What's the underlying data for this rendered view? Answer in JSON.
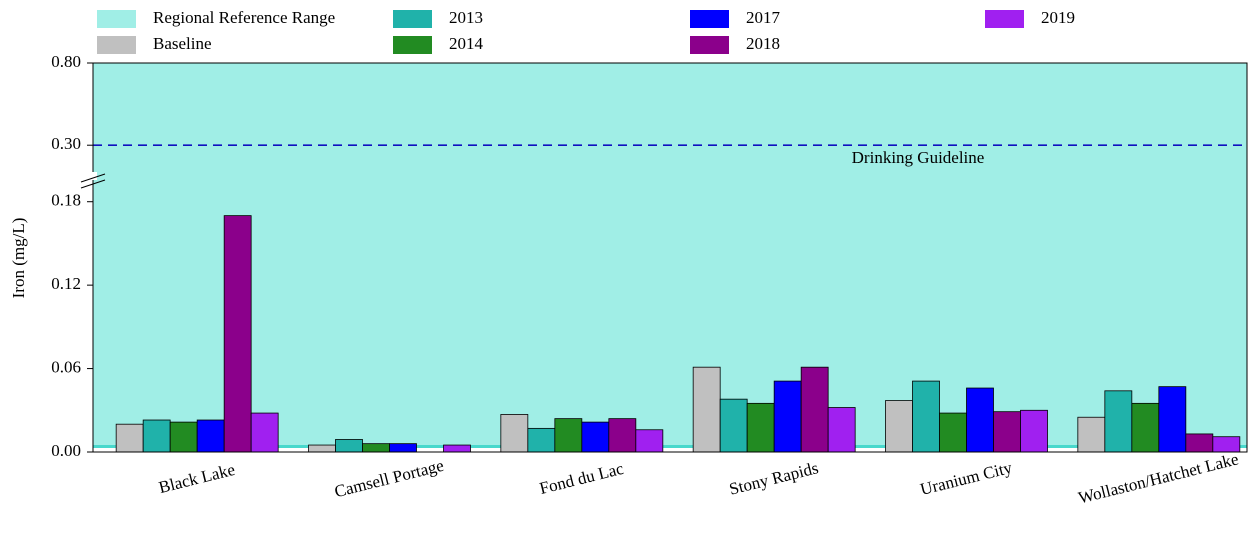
{
  "chart_data": {
    "type": "bar",
    "y_label": "Iron (mg/L)",
    "categories": [
      "Black Lake",
      "Camsell Portage",
      "Fond du Lac",
      "Stony Rapids",
      "Uranium City",
      "Wollaston/Hatchet Lake"
    ],
    "series": [
      {
        "name": "Baseline",
        "color": "#c0c0c0",
        "values": [
          0.02,
          0.005,
          0.027,
          0.061,
          0.037,
          0.025
        ]
      },
      {
        "name": "2013",
        "color": "#20b2aa",
        "values": [
          0.023,
          0.009,
          0.017,
          0.038,
          0.051,
          0.044
        ]
      },
      {
        "name": "2014",
        "color": "#228b22",
        "values": [
          0.0215,
          0.006,
          0.024,
          0.035,
          0.028,
          0.035
        ]
      },
      {
        "name": "2017",
        "color": "#0000ff",
        "values": [
          0.023,
          0.006,
          0.0215,
          0.051,
          0.046,
          0.047
        ]
      },
      {
        "name": "2018",
        "color": "#8b008b",
        "values": [
          0.17,
          null,
          0.024,
          0.061,
          0.029,
          0.013
        ]
      },
      {
        "name": "2019",
        "color": "#a020f0",
        "values": [
          0.028,
          0.005,
          0.016,
          0.032,
          0.03,
          0.011
        ]
      }
    ],
    "reference_range": {
      "name": "Regional Reference Range",
      "color": "#a0eee6",
      "edge_color": "#48d8cc",
      "range": [
        0.004,
        0.8
      ]
    },
    "guideline": {
      "label": "Drinking Guideline",
      "value": 0.3,
      "color": "#1010c0"
    },
    "ylim": [
      0,
      0.8
    ],
    "y_break": 0.21,
    "yticks": [
      {
        "value": 0,
        "label": "0.00"
      },
      {
        "value": 0.06,
        "label": "0.06"
      },
      {
        "value": 0.12,
        "label": "0.12"
      },
      {
        "value": 0.18,
        "label": "0.18"
      },
      {
        "value": 0.3,
        "label": "0.30"
      },
      {
        "value": 0.8,
        "label": "0.80"
      }
    ]
  }
}
